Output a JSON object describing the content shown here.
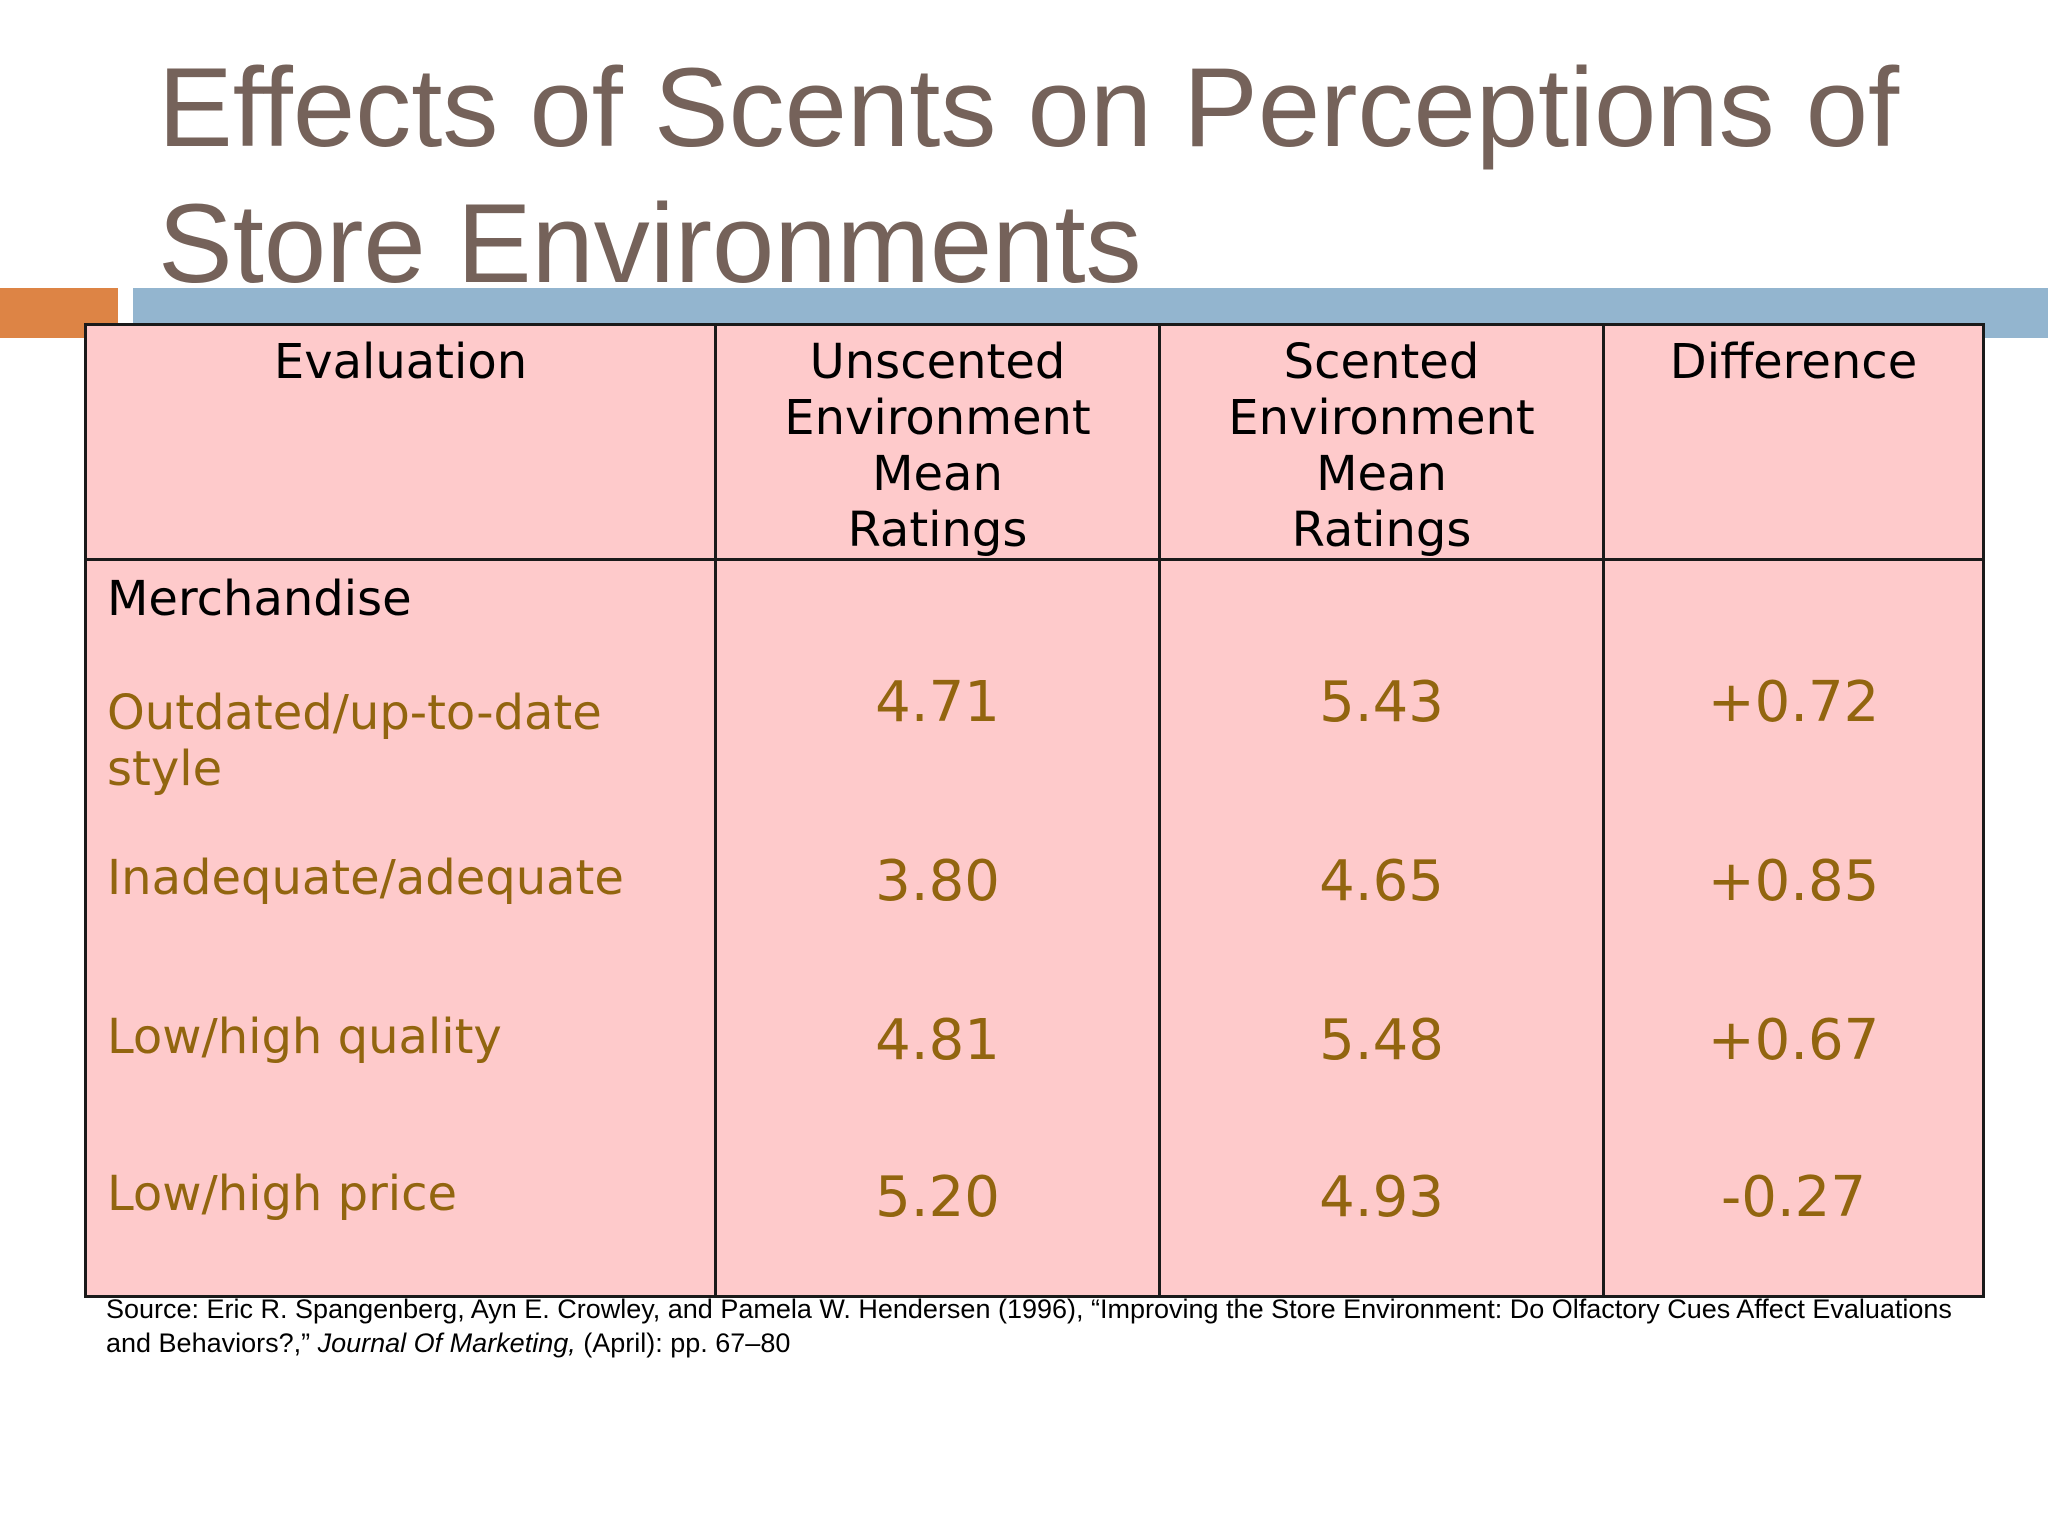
{
  "slide": {
    "title": "Effects of Scents on Perceptions of Store Environments",
    "colors": {
      "title": "#75625a",
      "accent_orange": "#dd8445",
      "accent_blue": "#93b5cf",
      "table_fill": "#fecacb",
      "item_text": "#92650f"
    }
  },
  "table": {
    "headers": [
      "Evaluation",
      "Unscented Environment Mean Ratings",
      "Scented Environment Mean Ratings",
      "Difference"
    ],
    "section_label": "Merchandise",
    "rows": [
      {
        "label": "Outdated/up-to-date style",
        "unscented": "4.71",
        "scented": "5.43",
        "difference": "+0.72"
      },
      {
        "label": "Inadequate/adequate",
        "unscented": "3.80",
        "scented": "4.65",
        "difference": "+0.85"
      },
      {
        "label": "Low/high quality",
        "unscented": "4.81",
        "scented": "5.48",
        "difference": "+0.67"
      },
      {
        "label": "Low/high price",
        "unscented": "5.20",
        "scented": "4.93",
        "difference": "-0.27"
      }
    ]
  },
  "source": {
    "prefix": "Source: Eric R. Spangenberg, Ayn E. Crowley, and Pamela W. Hendersen (1996), “Improving the Store Environment: Do Olfactory Cues Affect Evaluations and Behaviors?,” ",
    "journal": "Journal Of Marketing,",
    "suffix": " (April): pp. 67–80"
  }
}
